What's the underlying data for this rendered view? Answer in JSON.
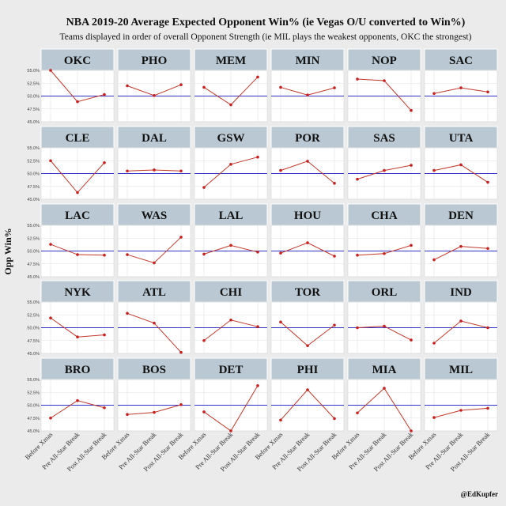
{
  "chart_data": {
    "type": "line",
    "title": "NBA 2019-20 Average Expected Opponent Win% (ie Vegas O/U converted to Win%)",
    "subtitle": "Teams displayed in order of overall Opponent Strength (ie MIL plays the weakest opponents, OKC the strongest)",
    "ylabel": "Opp Win%",
    "xlabel": "",
    "credit": "@EdKupfer",
    "categories": [
      "Before Xmas",
      "Pre All-Star Break",
      "Post All-Star Break"
    ],
    "ylim": [
      45.0,
      55.0
    ],
    "yticks": [
      45.0,
      47.5,
      50.0,
      52.5,
      55.0
    ],
    "ytick_labels": [
      "45.0%",
      "47.5%",
      "50.0%",
      "52.5%",
      "55.0%"
    ],
    "reference_line": 50.0,
    "colors": {
      "line": "#c0392b",
      "point": "#c82020",
      "reference": "#3333cc",
      "strip": "#b9c8d2",
      "panel": "#ffffff",
      "grid": "#e0e0e0"
    },
    "facets": [
      {
        "team": "OKC",
        "values": [
          55.0,
          48.9,
          50.3
        ]
      },
      {
        "team": "PHO",
        "values": [
          52.0,
          50.1,
          52.2
        ]
      },
      {
        "team": "MEM",
        "values": [
          51.7,
          48.3,
          53.7
        ]
      },
      {
        "team": "MIN",
        "values": [
          51.7,
          50.2,
          51.6
        ]
      },
      {
        "team": "NOP",
        "values": [
          53.3,
          53.0,
          47.2
        ]
      },
      {
        "team": "SAC",
        "values": [
          50.5,
          51.6,
          50.8
        ]
      },
      {
        "team": "CLE",
        "values": [
          52.5,
          46.3,
          52.1
        ]
      },
      {
        "team": "DAL",
        "values": [
          50.5,
          50.7,
          50.5
        ]
      },
      {
        "team": "GSW",
        "values": [
          47.3,
          51.8,
          53.2
        ]
      },
      {
        "team": "POR",
        "values": [
          50.6,
          52.4,
          48.1
        ]
      },
      {
        "team": "SAS",
        "values": [
          48.9,
          50.6,
          51.6
        ]
      },
      {
        "team": "UTA",
        "values": [
          50.6,
          51.7,
          48.3
        ]
      },
      {
        "team": "LAC",
        "values": [
          51.3,
          49.3,
          49.2
        ]
      },
      {
        "team": "WAS",
        "values": [
          49.3,
          47.7,
          52.7
        ]
      },
      {
        "team": "LAL",
        "values": [
          49.4,
          51.1,
          49.8
        ]
      },
      {
        "team": "HOU",
        "values": [
          49.6,
          51.6,
          49.0
        ]
      },
      {
        "team": "CHA",
        "values": [
          49.2,
          49.5,
          51.1
        ]
      },
      {
        "team": "DEN",
        "values": [
          48.3,
          50.9,
          50.5
        ]
      },
      {
        "team": "NYK",
        "values": [
          51.9,
          48.2,
          48.6
        ]
      },
      {
        "team": "ATL",
        "values": [
          52.8,
          50.9,
          45.2
        ]
      },
      {
        "team": "CHI",
        "values": [
          47.5,
          51.5,
          50.2
        ]
      },
      {
        "team": "TOR",
        "values": [
          51.1,
          46.5,
          50.5
        ]
      },
      {
        "team": "ORL",
        "values": [
          50.0,
          50.3,
          47.6
        ]
      },
      {
        "team": "IND",
        "values": [
          47.0,
          51.3,
          50.0
        ]
      },
      {
        "team": "BRO",
        "values": [
          47.5,
          50.9,
          49.5
        ]
      },
      {
        "team": "BOS",
        "values": [
          48.2,
          48.6,
          50.1
        ]
      },
      {
        "team": "DET",
        "values": [
          48.7,
          45.0,
          53.8
        ]
      },
      {
        "team": "PHI",
        "values": [
          47.1,
          53.0,
          47.4
        ]
      },
      {
        "team": "MIA",
        "values": [
          48.5,
          53.3,
          45.0
        ]
      },
      {
        "team": "MIL",
        "values": [
          47.6,
          49.0,
          49.4
        ]
      }
    ]
  }
}
